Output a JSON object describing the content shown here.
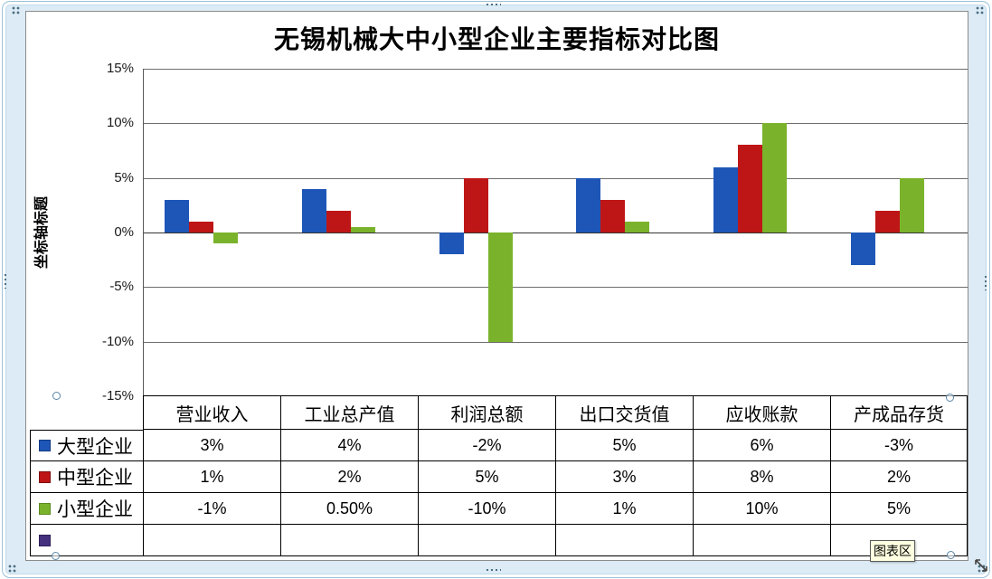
{
  "window": {
    "tooltip": "图表区"
  },
  "chart_data": {
    "type": "bar",
    "title": "无锡机械大中小型企业主要指标对比图",
    "y_axis_title": "坐标轴标题",
    "categories": [
      "营业收入",
      "工业总产值",
      "利润总额",
      "出口交货值",
      "应收账款",
      "产成品存货"
    ],
    "series": [
      {
        "name": "大型企业",
        "color": "#1e56b7",
        "border": "#123a80",
        "values": [
          3,
          4,
          -2,
          5,
          6,
          -3
        ],
        "labels": [
          "3%",
          "4%",
          "-2%",
          "5%",
          "6%",
          "-3%"
        ]
      },
      {
        "name": "中型企业",
        "color": "#be1616",
        "border": "#7e0e0e",
        "values": [
          1,
          2,
          5,
          3,
          8,
          2
        ],
        "labels": [
          "1%",
          "2%",
          "5%",
          "3%",
          "8%",
          "2%"
        ]
      },
      {
        "name": "小型企业",
        "color": "#7ab32b",
        "border": "#5c8a1f",
        "values": [
          -1,
          0.5,
          -10,
          1,
          10,
          5
        ],
        "labels": [
          "-1%",
          "0.50%",
          "-10%",
          "1%",
          "10%",
          "5%"
        ]
      },
      {
        "name": "",
        "color": "#45307e",
        "border": "#2e1f58",
        "values": [],
        "labels": [
          "",
          "",
          "",
          "",
          "",
          ""
        ]
      }
    ],
    "y_ticks": [
      "15%",
      "10%",
      "5%",
      "0%",
      "-5%",
      "-10%",
      "-15%"
    ],
    "ylim": [
      -15,
      15
    ],
    "grid": true,
    "legend_position": "table-left"
  }
}
